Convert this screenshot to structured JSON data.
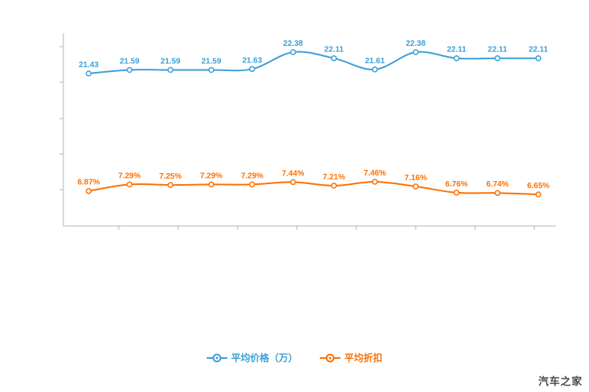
{
  "chart_data": {
    "type": "line",
    "title": "",
    "x_tick_labels": [],
    "y_tick_labels": [],
    "grid": false,
    "legend_position": "bottom",
    "axes": {
      "x_ticks_visible": true,
      "y_ticks_visible": true,
      "tick_labels_visible": false
    },
    "series": [
      {
        "name": "平均价格（万）",
        "color": "#3c9fd8",
        "values": [
          21.43,
          21.59,
          21.59,
          21.59,
          21.63,
          22.38,
          22.11,
          21.61,
          22.38,
          22.11,
          22.11,
          22.11
        ],
        "labels": [
          "21.43",
          "21.59",
          "21.59",
          "21.59",
          "21.63",
          "22.38",
          "22.11",
          "21.61",
          "22.38",
          "22.11",
          "22.11",
          "22.11"
        ]
      },
      {
        "name": "平均折扣",
        "color": "#fe7000",
        "values": [
          6.87,
          7.29,
          7.25,
          7.29,
          7.29,
          7.44,
          7.21,
          7.46,
          7.16,
          6.76,
          6.74,
          6.65
        ],
        "labels": [
          "6.87%",
          "7.29%",
          "7.25%",
          "7.29%",
          "7.29%",
          "7.44%",
          "7.21%",
          "7.46%",
          "7.16%",
          "6.76%",
          "6.74%",
          "6.65%"
        ]
      }
    ]
  },
  "watermark": "汽车之家"
}
